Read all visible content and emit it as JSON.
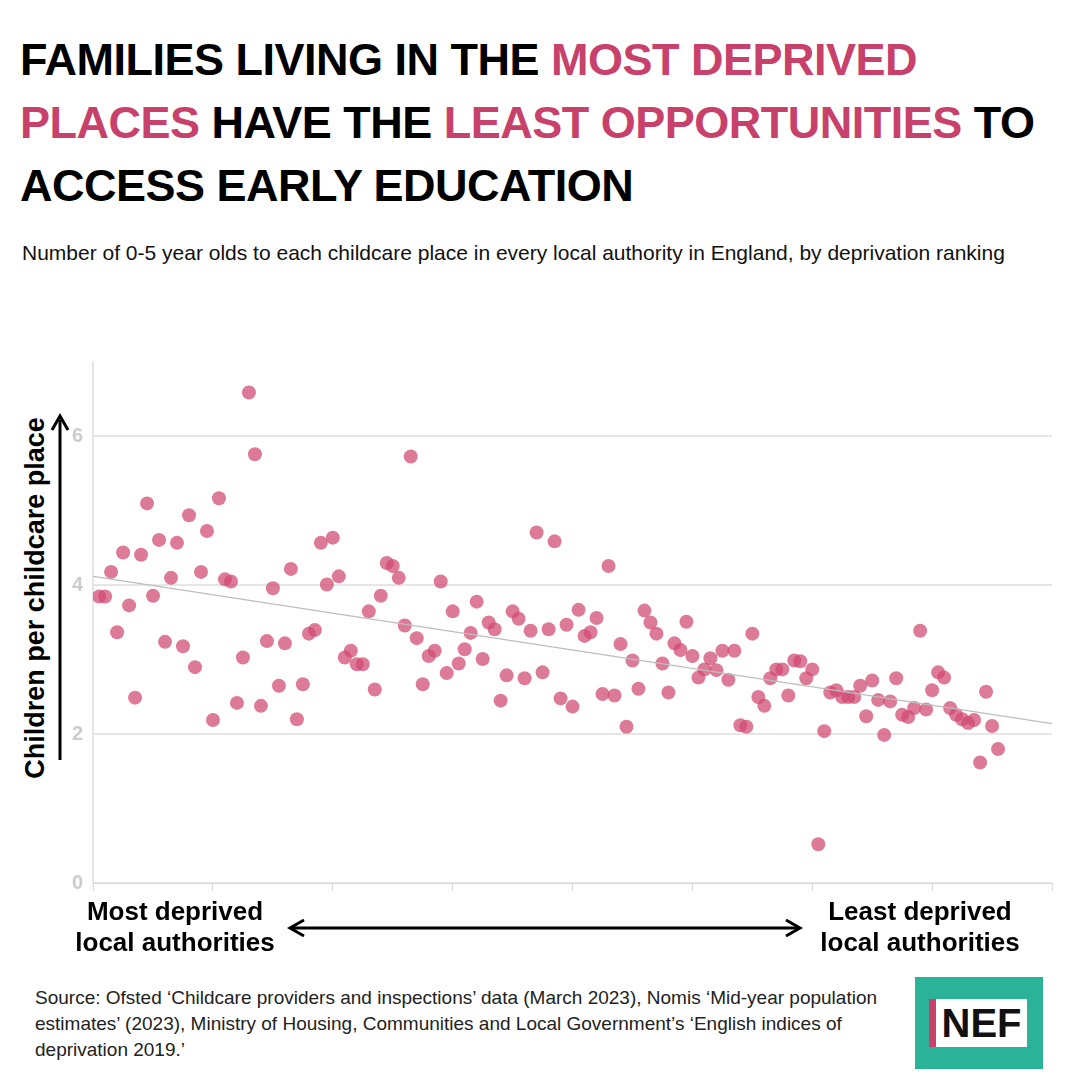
{
  "chart_data": {
    "type": "scatter",
    "title": [
      {
        "text": "FAMILIES LIVING IN THE ",
        "color": "#000000"
      },
      {
        "text": "MOST DEPRIVED PLACES",
        "color": "#c8416b"
      },
      {
        "text": " HAVE THE ",
        "color": "#000000"
      },
      {
        "text": "LEAST OPPORTUNITIES",
        "color": "#c8416b"
      },
      {
        "text": " TO ACCESS EARLY EDUCATION",
        "color": "#000000"
      }
    ],
    "subtitle": "Number of 0-5 year olds to each childcare place in every local authority in England, by deprivation ranking",
    "ylabel": "Children per childcare place",
    "xlabel_left": "Most deprived local authorities",
    "xlabel_right": "Least deprived local authorities",
    "source": "Source: Ofsted ‘Childcare providers and inspections’ data (March 2023), Nomis ‘Mid-year population estimates’ (2023), Ministry of Housing, Communities and Local Government’s ‘English indices of deprivation 2019.’",
    "logo": "NEF",
    "xlim": [
      0,
      160
    ],
    "xticks": [
      0,
      20,
      40,
      60,
      80,
      100,
      120,
      140,
      160
    ],
    "ylim": [
      0,
      7
    ],
    "yticks": [
      0,
      2,
      4,
      6
    ],
    "grid": true,
    "tick_labels": "y",
    "series": [
      {
        "type": "scatter",
        "color": "#d14a72",
        "marker": "circle",
        "x": [
          1,
          2,
          3,
          4,
          5,
          6,
          7,
          8,
          9,
          10,
          11,
          12,
          13,
          14,
          15,
          16,
          17,
          18,
          19,
          20,
          21,
          22,
          23,
          24,
          25,
          26,
          27,
          28,
          29,
          30,
          31,
          32,
          33,
          34,
          35,
          36,
          37,
          38,
          39,
          40,
          41,
          42,
          43,
          44,
          45,
          46,
          47,
          48,
          49,
          50,
          51,
          52,
          53,
          54,
          55,
          56,
          57,
          58,
          59,
          60,
          61,
          62,
          63,
          64,
          65,
          66,
          67,
          68,
          69,
          70,
          71,
          72,
          73,
          74,
          75,
          76,
          77,
          78,
          79,
          80,
          81,
          82,
          83,
          84,
          85,
          86,
          87,
          88,
          89,
          90,
          91,
          92,
          93,
          94,
          95,
          96,
          97,
          98,
          99,
          100,
          101,
          102,
          103,
          104,
          105,
          106,
          107,
          108,
          109,
          110,
          111,
          112,
          113,
          114,
          115,
          116,
          117,
          118,
          119,
          120,
          121,
          122,
          123,
          124,
          125,
          126,
          127,
          128,
          129,
          130,
          131,
          132,
          133,
          134,
          135,
          136,
          137,
          138,
          139,
          140,
          141,
          142,
          143,
          144,
          145,
          146,
          147,
          148,
          149,
          150,
          151
        ],
        "values": [
          3.85,
          3.85,
          4.18,
          3.37,
          4.44,
          3.73,
          2.49,
          4.41,
          5.1,
          3.86,
          4.61,
          3.24,
          4.1,
          4.57,
          3.18,
          4.94,
          2.9,
          4.18,
          4.73,
          2.19,
          5.17,
          4.08,
          4.05,
          2.42,
          3.03,
          6.59,
          5.76,
          2.38,
          3.25,
          3.96,
          2.65,
          3.22,
          4.22,
          2.2,
          2.67,
          3.35,
          3.4,
          4.57,
          4.01,
          4.64,
          4.12,
          3.03,
          3.12,
          2.94,
          2.94,
          3.65,
          2.6,
          3.86,
          4.3,
          4.26,
          4.1,
          3.46,
          5.73,
          3.29,
          2.67,
          3.05,
          3.12,
          4.05,
          2.82,
          3.65,
          2.95,
          3.14,
          3.36,
          3.78,
          3.01,
          3.5,
          3.41,
          2.45,
          2.79,
          3.65,
          3.55,
          2.75,
          3.39,
          4.71,
          2.83,
          3.41,
          4.59,
          2.48,
          3.47,
          2.37,
          3.67,
          3.32,
          3.37,
          3.56,
          2.54,
          4.26,
          2.52,
          3.21,
          2.1,
          2.99,
          2.61,
          3.66,
          3.5,
          3.35,
          2.95,
          2.56,
          3.22,
          3.13,
          3.51,
          3.05,
          2.76,
          2.87,
          3.02,
          2.86,
          3.12,
          2.73,
          3.12,
          2.12,
          2.1,
          3.35,
          2.5,
          2.38,
          2.75,
          2.87,
          2.87,
          2.52,
          2.99,
          2.98,
          2.75,
          2.87,
          0.52,
          2.04,
          2.56,
          2.59,
          2.5,
          2.5,
          2.5,
          2.65,
          2.24,
          2.72,
          2.46,
          1.99,
          2.44,
          2.75,
          2.26,
          2.23,
          2.35,
          3.39,
          2.33,
          2.59,
          2.83,
          2.76,
          2.35,
          2.26,
          2.2,
          2.15,
          2.19,
          1.62,
          2.57,
          2.11,
          1.8
        ]
      },
      {
        "type": "line",
        "color": "#bdbdbd",
        "line_style": "solid",
        "x": [
          0,
          160
        ],
        "values": [
          4.12,
          2.14
        ]
      }
    ]
  }
}
